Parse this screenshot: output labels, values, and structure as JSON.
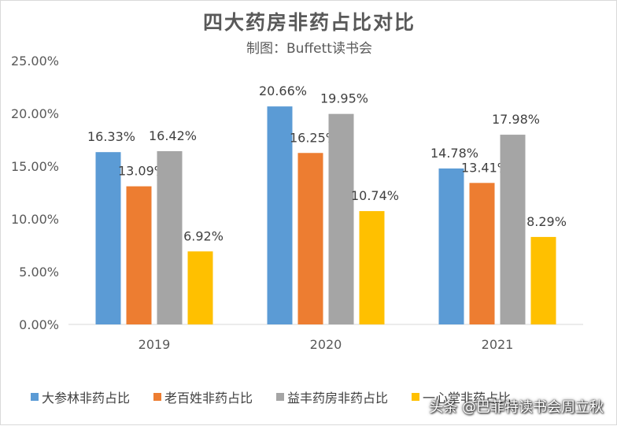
{
  "chart_data": {
    "type": "bar",
    "title": "四大药房非药占比对比",
    "subtitle": "制图：Buffett读书会",
    "xlabel": "",
    "ylabel": "",
    "ylim": [
      0,
      25
    ],
    "yticks": [
      "0.00%",
      "5.00%",
      "10.00%",
      "15.00%",
      "20.00%",
      "25.00%"
    ],
    "categories": [
      "2019",
      "2020",
      "2021"
    ],
    "series": [
      {
        "name": "大参林非药占比",
        "color": "#5b9bd5",
        "values": [
          16.33,
          20.66,
          14.78
        ],
        "labels": [
          "16.33%",
          "20.66%",
          "14.78%"
        ]
      },
      {
        "name": "老百姓非药占比",
        "color": "#ed7d31",
        "values": [
          13.09,
          16.25,
          13.41
        ],
        "labels": [
          "13.09%",
          "16.25%",
          "13.41%"
        ]
      },
      {
        "name": "益丰药房非药占比",
        "color": "#a5a5a5",
        "values": [
          16.42,
          19.95,
          17.98
        ],
        "labels": [
          "16.42%",
          "19.95%",
          "17.98%"
        ]
      },
      {
        "name": "一心堂非药占比",
        "color": "#ffc000",
        "values": [
          6.92,
          10.74,
          8.29
        ],
        "labels": [
          "6.92%",
          "10.74%",
          "8.29%"
        ]
      }
    ],
    "grid": false,
    "legend": "bottom"
  },
  "watermark": "头条 @巴菲特读书会周立秋"
}
